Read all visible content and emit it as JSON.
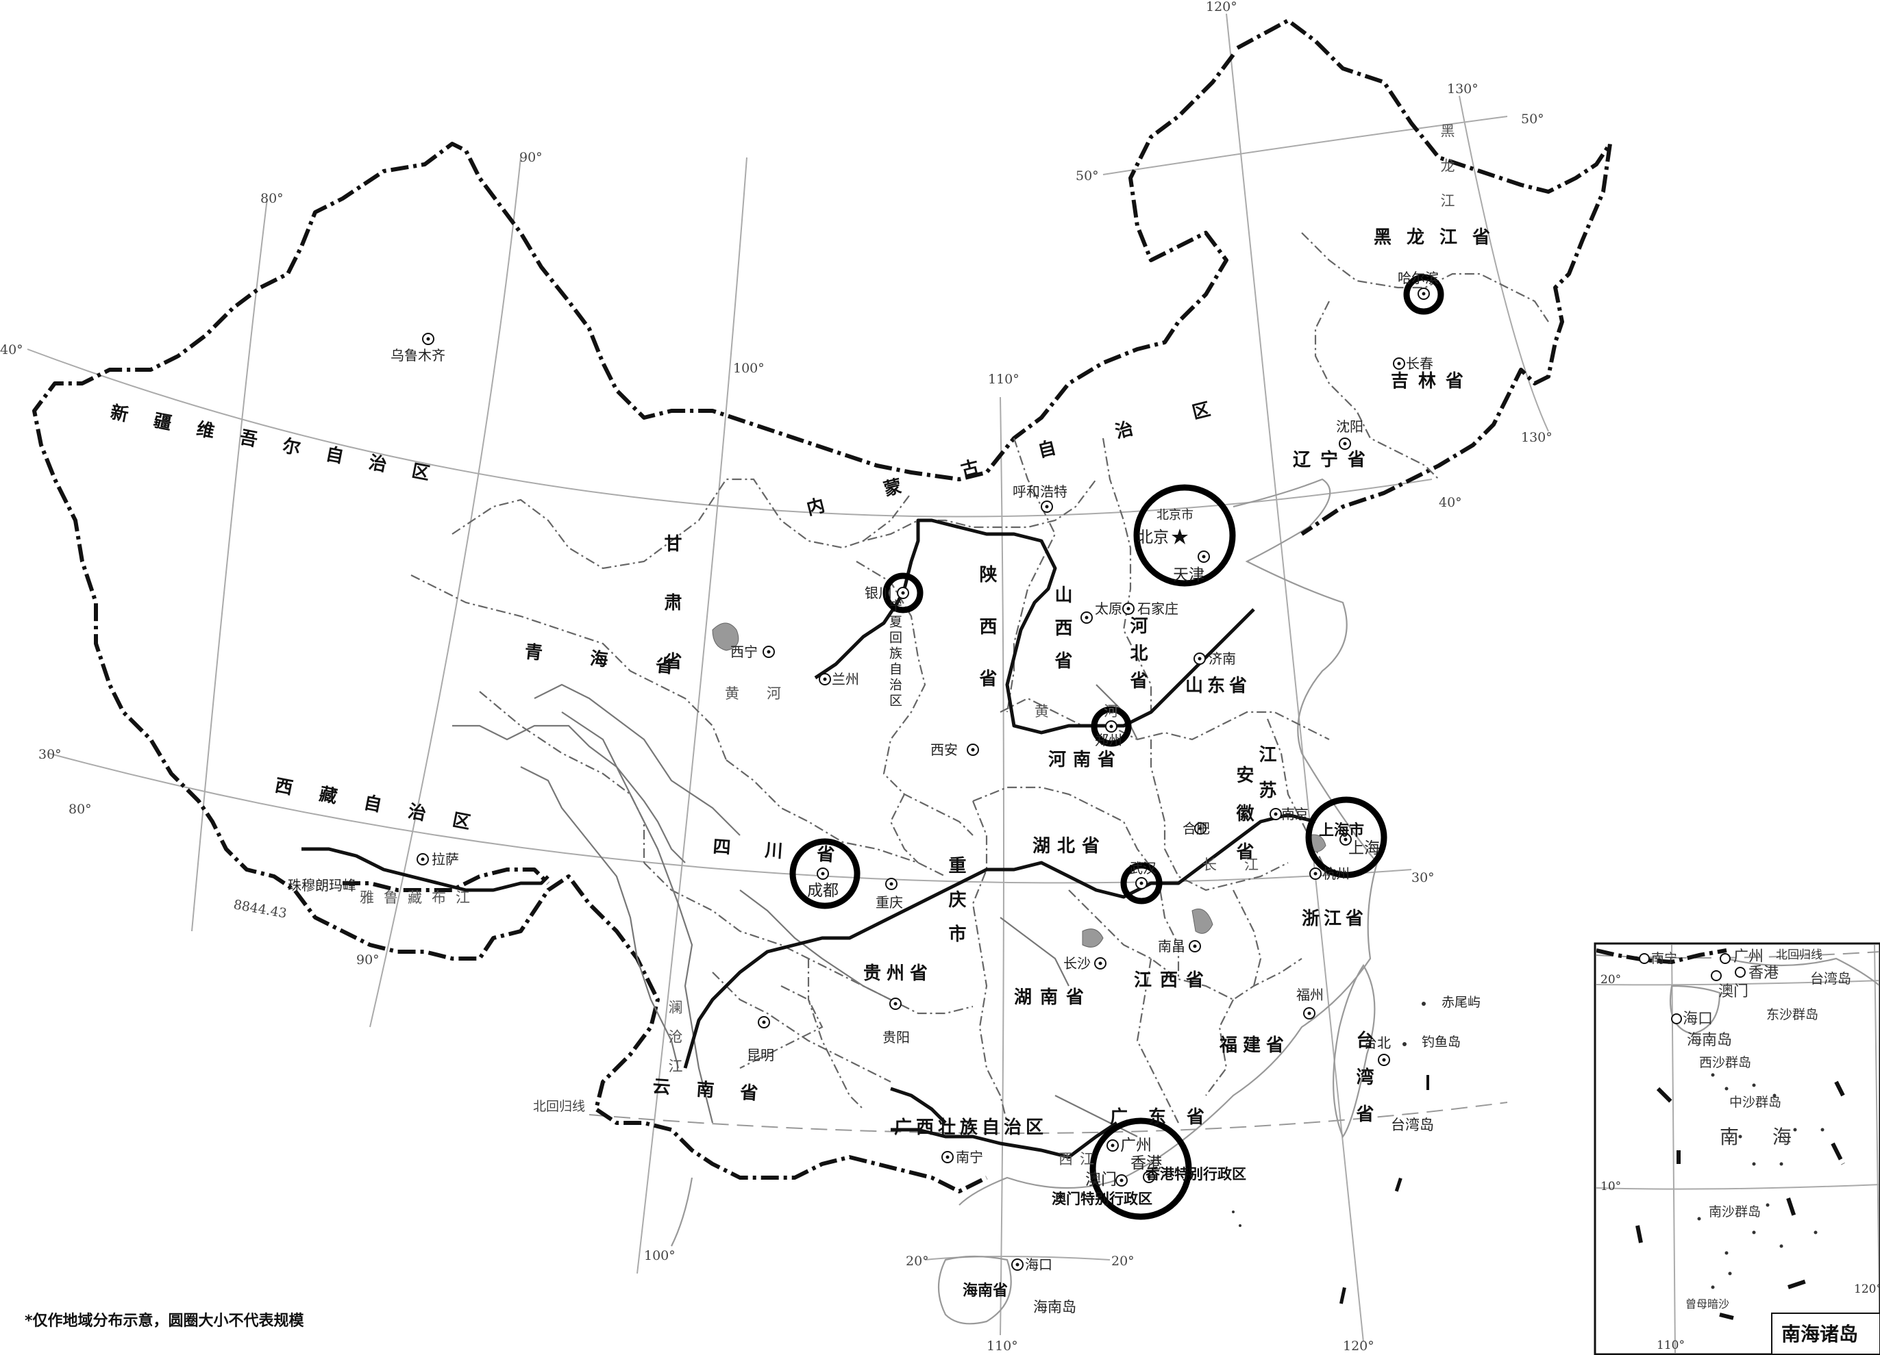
{
  "map": {
    "graticule": {
      "lon_labels": [
        "80°",
        "90°",
        "100°",
        "110°",
        "120°",
        "130°",
        "80°",
        "90°",
        "100°",
        "110°",
        "120°",
        "130°"
      ],
      "lat_labels": [
        "50°",
        "40°",
        "30°",
        "50°",
        "40°",
        "30°",
        "20°",
        "20°"
      ],
      "tropic_label": "北回归线"
    },
    "regions": {
      "xinjiang": "新疆维吾尔自治区",
      "neimenggu": "内蒙古自治区",
      "gansu": "甘肃省",
      "qinghai": "青海省",
      "xizang": "西藏自治区",
      "sichuan": "四川省",
      "yunnan": "云南省",
      "guangxi": "广西壮族自治区",
      "guangdong": "广东省",
      "heilongjiang": "黑龙江省",
      "jilin": "吉林省",
      "liaoning": "辽宁省",
      "hebei": "河北省",
      "shanxi": "山西省",
      "shaanxi": "陕西省",
      "ningxia": "宁夏回族自治区",
      "henan": "河南省",
      "shandong": "山东省",
      "jiangsu": "江苏",
      "anhui": "安徽省",
      "hubei": "湖北省",
      "chongqing": "重庆市",
      "guizhou": "贵州省",
      "hunan": "湖南省",
      "jiangxi": "江西省",
      "zhejiang": "浙江省",
      "fujian": "福建省",
      "taiwan": "台湾省",
      "hainan": "海南省",
      "shanghai": "上海市",
      "beijing_shi": "北京市",
      "tianjin_shi": "天津",
      "macau_sar": "澳门特别行政区",
      "hongkong_sar": "香港特别行政区"
    },
    "cities": {
      "urumqi": "乌鲁木齐",
      "lhasa": "拉萨",
      "xining": "西宁",
      "lanzhou": "兰州",
      "yinchuan": "银川",
      "hohhot": "呼和浩特",
      "beijing": "北京",
      "tianjin": "天津",
      "shijiazhuang": "石家庄",
      "taiyuan": "太原",
      "jinan": "济南",
      "zhengzhou": "郑州",
      "xian": "西安",
      "chengdu": "成都",
      "chongqing": "重庆",
      "wuhan": "武汉",
      "hefei": "合肥",
      "nanjing": "南京",
      "shanghai": "上海",
      "hangzhou": "杭州",
      "changsha": "长沙",
      "nanchang": "南昌",
      "guiyang": "贵阳",
      "kunming": "昆明",
      "nanning": "南宁",
      "guangzhou": "广州",
      "hongkong": "香港",
      "macau": "澳门",
      "fuzhou": "福州",
      "taipei": "台北",
      "haikou": "海口",
      "harbin": "哈尔滨",
      "changchun": "长春",
      "shenyang": "沈阳"
    },
    "features": {
      "everest": "珠穆朗玛峰",
      "everest_height": "8844.43",
      "yarlung": "雅鲁藏布江",
      "lancang": "澜沧江",
      "huanghe": "黄河",
      "changjiang": "长江",
      "heilongjiang_river": "黑龙江",
      "xijiang": "西江",
      "chiweiyu": "赤尾屿",
      "diaoyudao": "钓鱼岛",
      "taiwan_island": "台湾岛",
      "hainan_island": "海南岛"
    },
    "circled_cities": [
      "哈尔滨",
      "北京",
      "天津",
      "银川",
      "郑州",
      "成都",
      "武汉",
      "上海",
      "广州",
      "香港",
      "澳门"
    ]
  },
  "inset": {
    "title": "南海诸岛",
    "labels": {
      "nanning": "南宁",
      "guangzhou": "广州",
      "hongkong": "香港",
      "macau": "澳门",
      "haikou": "海口",
      "hainan": "海南岛",
      "dongsha": "东沙群岛",
      "xisha": "西沙群岛",
      "zhongsha": "中沙群岛",
      "nansha": "南沙群岛",
      "nanhai": "南 海",
      "zengmu": "曾母暗沙",
      "taiwan": "台湾岛",
      "tropic": "北回归线",
      "lat20": "20°",
      "lat10": "10°",
      "lon110": "110°",
      "lon120": "120°"
    }
  },
  "note": "*仅作地域分布示意，圆圈大小不代表规模"
}
